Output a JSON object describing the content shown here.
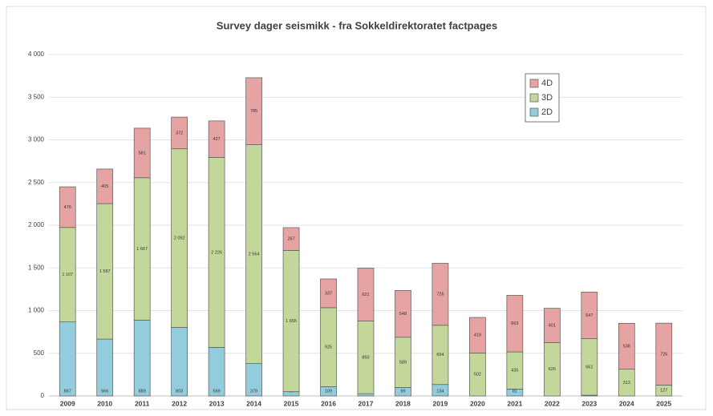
{
  "chart_data": {
    "type": "stacked_bar",
    "title": "Survey dager seismikk - fra Sokkeldirektoratet factpages",
    "categories": [
      "2009",
      "2010",
      "2011",
      "2012",
      "2013",
      "2014",
      "2015",
      "2016",
      "2017",
      "2018",
      "2019",
      "2020",
      "2021",
      "2022",
      "2023",
      "2024",
      "2025"
    ],
    "series": [
      {
        "name": "2D",
        "color": "#93cddd",
        "values": [
          867,
          666,
          889,
          803,
          569,
          379,
          50,
          109,
          27,
          99,
          134,
          null,
          81,
          null,
          9,
          null,
          null
        ],
        "value_labels": [
          "867",
          "666",
          "889",
          "803",
          "569",
          "379",
          "50",
          "109",
          "27",
          "99",
          "134",
          null,
          "81",
          null,
          "9",
          null,
          null
        ]
      },
      {
        "name": "3D",
        "color": "#c4d79b",
        "values": [
          1107,
          1587,
          1667,
          2092,
          2226,
          2564,
          1655,
          925,
          850,
          589,
          694,
          502,
          435,
          626,
          661,
          313,
          127
        ],
        "value_labels": [
          "1 107",
          "1 587",
          "1 667",
          "2 092",
          "2 226",
          "2 564",
          "1 655",
          "925",
          "850",
          "589",
          "694",
          "502",
          "435",
          "626",
          "661",
          "313",
          "127"
        ]
      },
      {
        "name": "4D",
        "color": "#e6a3a3",
        "values": [
          476,
          405,
          581,
          372,
          427,
          785,
          267,
          337,
          621,
          548,
          726,
          418,
          663,
          401,
          547,
          538,
          726
        ],
        "value_labels": [
          "476",
          "405",
          "581",
          "372",
          "427",
          "785",
          "267",
          "337",
          "621",
          "548",
          "726",
          "418",
          "663",
          "401",
          "547",
          "538",
          "726"
        ]
      }
    ],
    "ylim": [
      0,
      4000
    ],
    "yticks": [
      0,
      500,
      {
        "value": 1000,
        "label": "1 000"
      },
      {
        "value": 1500,
        "label": "1 500"
      },
      {
        "value": 2000,
        "label": "2 000"
      },
      {
        "value": 2500,
        "label": "2 500"
      },
      {
        "value": 3000,
        "label": "3 000"
      },
      {
        "value": 3500,
        "label": "3 500"
      },
      {
        "value": 4000,
        "label": "4 000"
      }
    ],
    "grid": true,
    "legend": "top-right"
  }
}
